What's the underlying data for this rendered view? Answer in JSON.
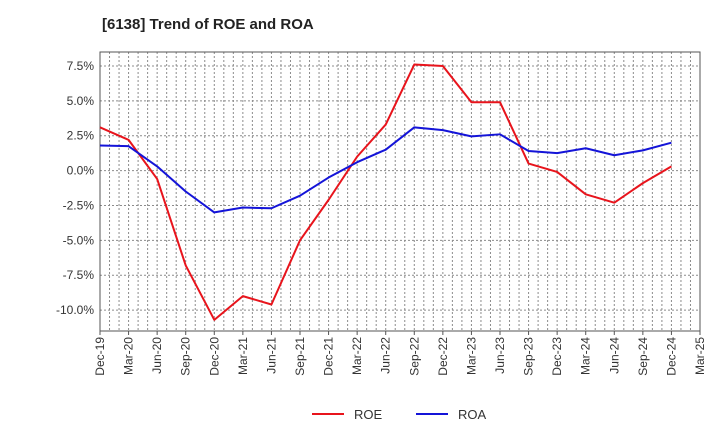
{
  "chart_data": {
    "type": "line",
    "title": "[6138]  Trend of ROE and ROA",
    "xlabel": "",
    "ylabel": "",
    "x_ticks": [
      "Dec-19",
      "Mar-20",
      "Jun-20",
      "Sep-20",
      "Dec-20",
      "Mar-21",
      "Jun-21",
      "Sep-21",
      "Dec-21",
      "Mar-22",
      "Jun-22",
      "Sep-22",
      "Dec-22",
      "Mar-23",
      "Jun-23",
      "Sep-23",
      "Dec-23",
      "Mar-24",
      "Jun-24",
      "Sep-24",
      "Dec-24",
      "Mar-25"
    ],
    "y_ticks": [
      7.5,
      5.0,
      2.5,
      0.0,
      -2.5,
      -5.0,
      -7.5,
      -10.0
    ],
    "y_tick_labels": [
      "7.5%",
      "5.0%",
      "2.5%",
      "0.0%",
      "-2.5%",
      "-5.0%",
      "-7.5%",
      "-10.0%"
    ],
    "ylim": [
      -11.5,
      8.5
    ],
    "grid": true,
    "legend_position": "bottom-center",
    "series": [
      {
        "name": "ROE",
        "color": "#e8141c",
        "x": [
          "Dec-19",
          "Mar-20",
          "Jun-20",
          "Sep-20",
          "Dec-20",
          "Mar-21",
          "Jun-21",
          "Sep-21",
          "Dec-21",
          "Mar-22",
          "Jun-22",
          "Sep-22",
          "Dec-22",
          "Mar-23",
          "Jun-23",
          "Sep-23",
          "Dec-23",
          "Mar-24",
          "Jun-24",
          "Sep-24",
          "Dec-24"
        ],
        "values": [
          3.1,
          2.2,
          -0.6,
          -6.8,
          -10.7,
          -9.0,
          -9.6,
          -5.0,
          -2.1,
          1.0,
          3.3,
          7.6,
          7.5,
          4.9,
          4.9,
          0.5,
          -0.1,
          -1.7,
          -2.3,
          -0.9,
          0.3
        ]
      },
      {
        "name": "ROA",
        "color": "#1414d8",
        "x": [
          "Dec-19",
          "Mar-20",
          "Jun-20",
          "Sep-20",
          "Dec-20",
          "Mar-21",
          "Jun-21",
          "Sep-21",
          "Dec-21",
          "Mar-22",
          "Jun-22",
          "Sep-22",
          "Dec-22",
          "Mar-23",
          "Jun-23",
          "Sep-23",
          "Dec-23",
          "Mar-24",
          "Jun-24",
          "Sep-24",
          "Dec-24"
        ],
        "values": [
          1.8,
          1.75,
          0.3,
          -1.5,
          -3.0,
          -2.65,
          -2.7,
          -1.8,
          -0.5,
          0.6,
          1.5,
          3.1,
          2.9,
          2.45,
          2.6,
          1.4,
          1.25,
          1.6,
          1.1,
          1.45,
          2.0
        ]
      }
    ]
  }
}
